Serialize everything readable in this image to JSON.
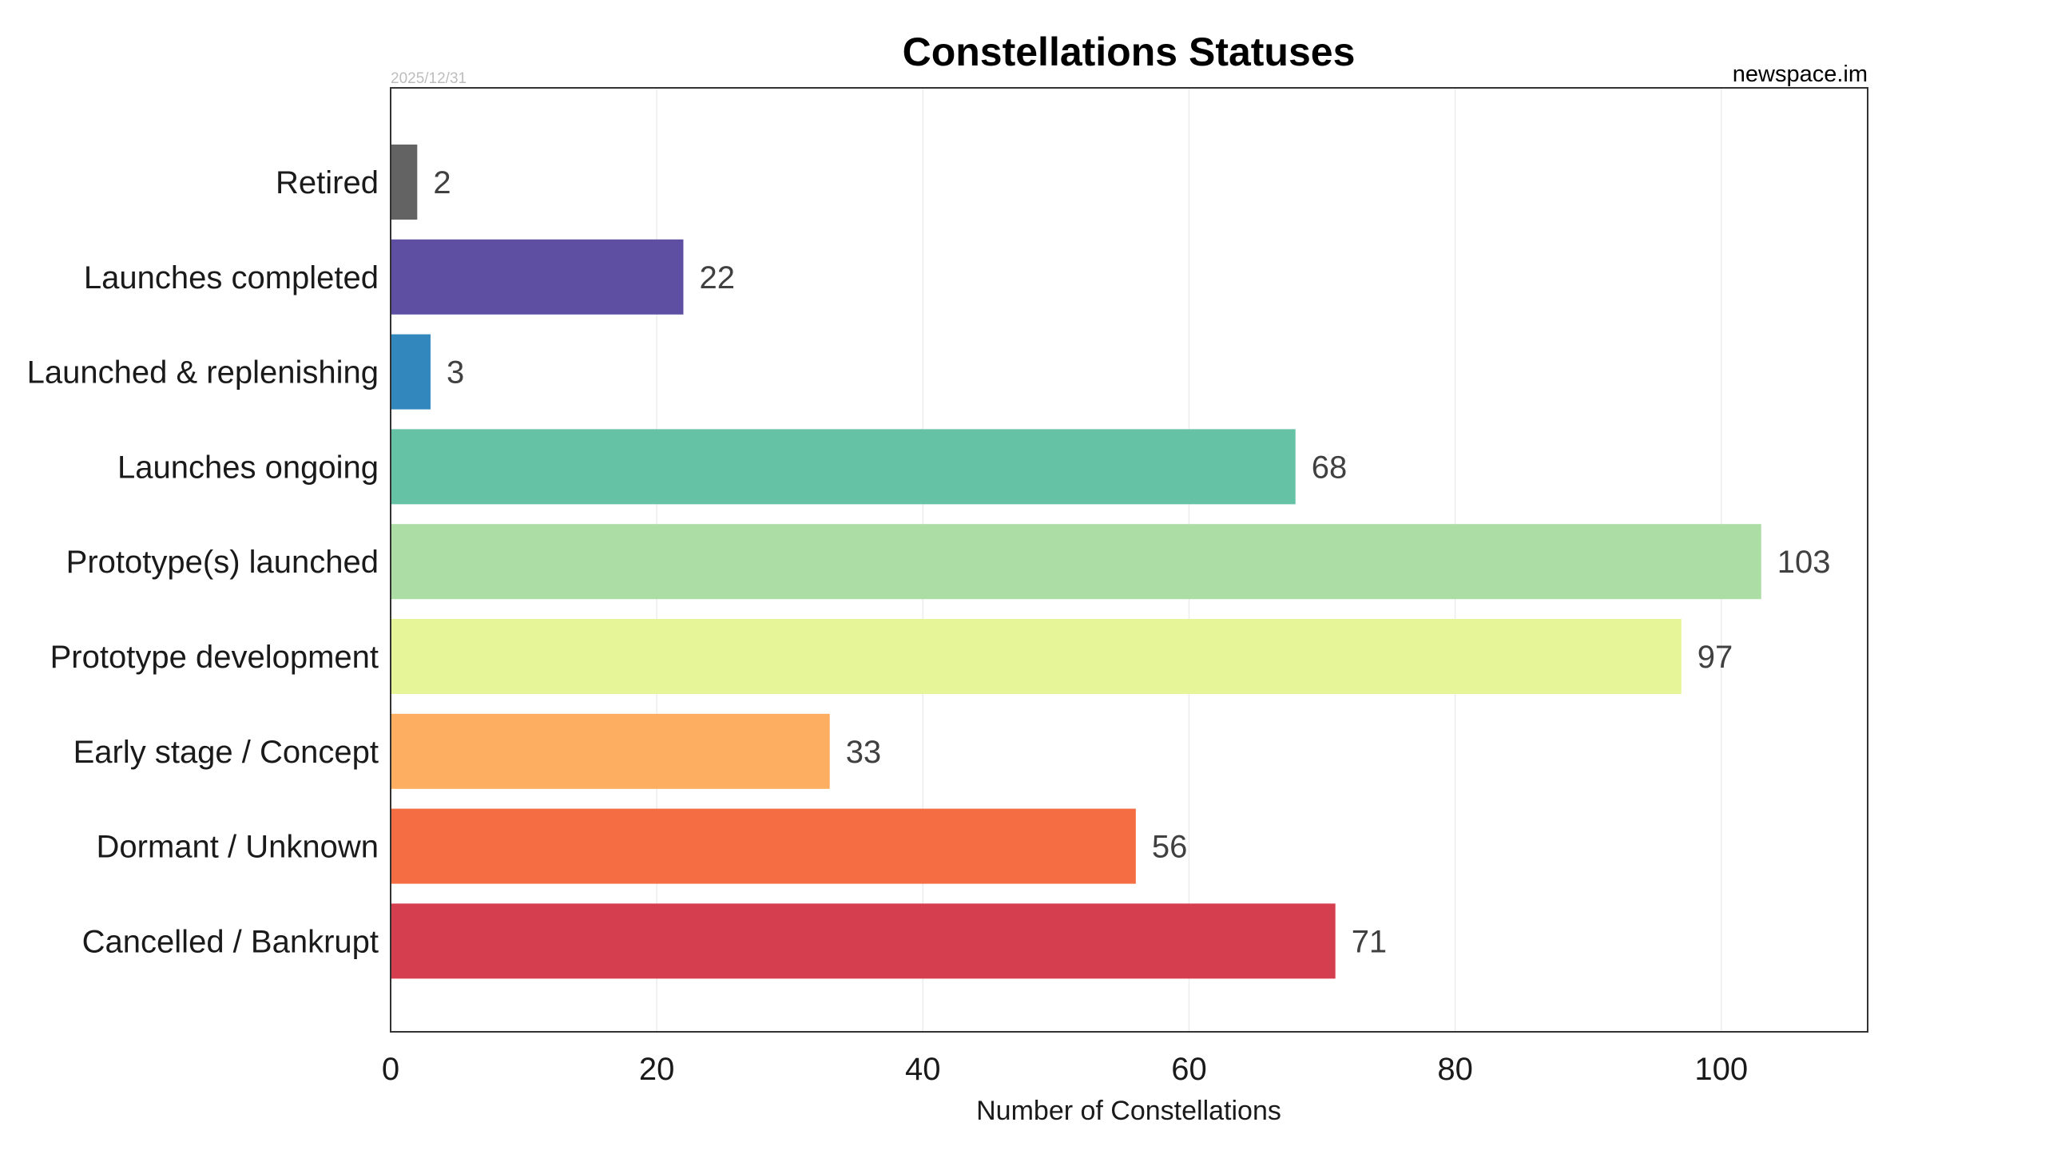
{
  "chart_data": {
    "type": "bar",
    "orientation": "horizontal",
    "title": "Constellations Statuses",
    "date": "2025/12/31",
    "source": "newspace.im",
    "xlabel": "Number of Constellations",
    "ylabel": "",
    "xlim": [
      0,
      111
    ],
    "xticks": [
      0,
      20,
      40,
      60,
      80,
      100
    ],
    "grid": "vertical, faint",
    "categories": [
      "Retired",
      "Launches completed",
      "Launched & replenishing",
      "Launches ongoing",
      "Prototype(s) launched",
      "Prototype development",
      "Early stage / Concept",
      "Dormant / Unknown",
      "Cancelled / Bankrupt"
    ],
    "values": [
      2,
      22,
      3,
      68,
      103,
      97,
      33,
      56,
      71
    ],
    "colors": [
      "#636363",
      "#5e4fa2",
      "#3288bd",
      "#66c2a5",
      "#abdda4",
      "#e6f598",
      "#fdae61",
      "#f46d43",
      "#d53e4f"
    ]
  }
}
